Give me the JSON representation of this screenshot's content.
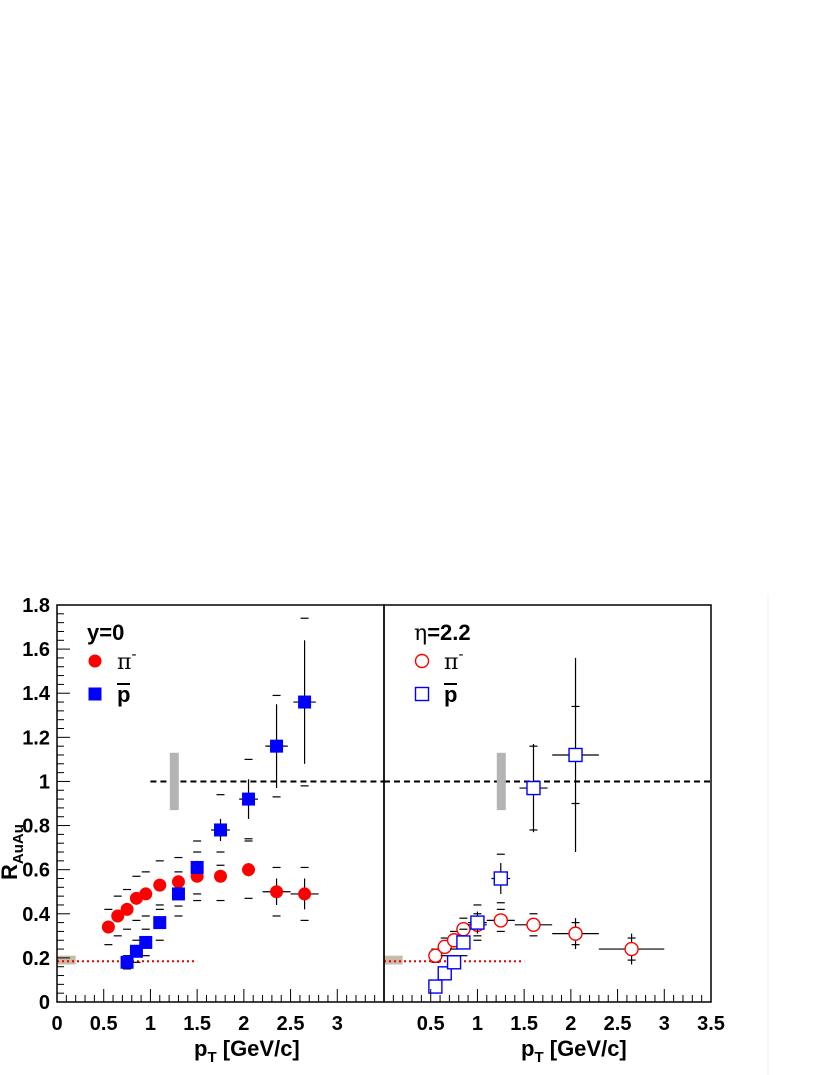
{
  "chart_data": [
    {
      "type": "scatter",
      "panel": "left",
      "title": "",
      "xlabel": "p",
      "xlabel_sub": "T",
      "xlabel_unit": " [GeV/c]",
      "ylabel": "R",
      "ylabel_sub": "AuAu",
      "xlim": [
        0,
        3.5
      ],
      "ylim": [
        0,
        1.8
      ],
      "x_ticks": [
        0,
        0.5,
        1,
        1.5,
        2,
        2.5,
        3
      ],
      "x_tick_labels": [
        "0",
        "0.5",
        "1",
        "1.5",
        "2",
        "2.5",
        "3"
      ],
      "y_ticks": [
        0,
        0.2,
        0.4,
        0.6,
        0.8,
        1.0,
        1.2,
        1.4,
        1.6,
        1.8
      ],
      "y_tick_labels": [
        "0",
        "0.2",
        "0.4",
        "0.6",
        "0.8",
        "1",
        "1.2",
        "1.4",
        "1.6",
        "1.8"
      ],
      "grid": false,
      "legend_position": "top-left",
      "legend_title": "y=0",
      "reference_line": {
        "y": 1.0,
        "x_from": 1.0,
        "x_to": 3.5,
        "style": "dashed"
      },
      "reference_band": {
        "x": 1.25,
        "y_low": 0.87,
        "y_high": 1.13,
        "color": "#b4b4b4"
      },
      "normalization_box": {
        "x_low": 0.0,
        "x_high": 0.2,
        "y_low": 0.17,
        "y_high": 0.21,
        "color": "#c8bca8"
      },
      "ncoll_line": {
        "y": 0.185,
        "x_from": 0.0,
        "x_to": 1.5,
        "color": "#e00000",
        "style": "dotted"
      },
      "series": [
        {
          "name": "π",
          "name_sup": "-",
          "marker": "filled-circle",
          "color": "#ff0000",
          "x": [
            0.55,
            0.65,
            0.75,
            0.85,
            0.95,
            1.1,
            1.3,
            1.5,
            1.75,
            2.05,
            2.35,
            2.65
          ],
          "y": [
            0.34,
            0.39,
            0.42,
            0.47,
            0.49,
            0.53,
            0.545,
            0.57,
            0.57,
            0.6,
            0.5,
            0.49
          ],
          "xerr": [
            0,
            0,
            0,
            0,
            0,
            0,
            0,
            0,
            0,
            0,
            0.15,
            0.15
          ],
          "yerr": [
            0.01,
            0.01,
            0.01,
            0.01,
            0.01,
            0.01,
            0.01,
            0.015,
            0.02,
            0.03,
            0.06,
            0.07
          ],
          "sys": [
            0.08,
            0.09,
            0.09,
            0.1,
            0.1,
            0.11,
            0.11,
            0.11,
            0.11,
            0.13,
            0.11,
            0.12
          ]
        },
        {
          "name": "p",
          "name_bar": true,
          "marker": "filled-square",
          "color": "#0000ff",
          "x": [
            0.75,
            0.85,
            0.95,
            1.1,
            1.3,
            1.5,
            1.75,
            2.05,
            2.35,
            2.65
          ],
          "y": [
            0.18,
            0.23,
            0.27,
            0.36,
            0.49,
            0.61,
            0.78,
            0.92,
            1.16,
            1.36
          ],
          "xerr": [
            0,
            0,
            0,
            0,
            0,
            0,
            0.1,
            0.1,
            0.12,
            0.12
          ],
          "yerr": [
            0.01,
            0.01,
            0.01,
            0.02,
            0.02,
            0.03,
            0.05,
            0.09,
            0.19,
            0.28
          ],
          "sys": [
            0.03,
            0.05,
            0.06,
            0.08,
            0.1,
            0.12,
            0.16,
            0.18,
            0.23,
            0.38
          ]
        }
      ]
    },
    {
      "type": "scatter",
      "panel": "right",
      "title": "",
      "xlabel": "p",
      "xlabel_sub": "T",
      "xlabel_unit": " [GeV/c]",
      "xlim": [
        0,
        3.5
      ],
      "ylim": [
        0,
        1.8
      ],
      "x_ticks": [
        0.5,
        1,
        1.5,
        2,
        2.5,
        3,
        3.5
      ],
      "x_tick_labels": [
        "0.5",
        "1",
        "1.5",
        "2",
        "2.5",
        "3",
        "3.5"
      ],
      "y_ticks": [
        0,
        0.2,
        0.4,
        0.6,
        0.8,
        1.0,
        1.2,
        1.4,
        1.6,
        1.8
      ],
      "grid": false,
      "legend_position": "top-left",
      "legend_title_symbol": "η",
      "legend_title": "=2.2",
      "reference_line": {
        "y": 1.0,
        "x_from": 0.0,
        "x_to": 3.5,
        "style": "dashed"
      },
      "reference_band": {
        "x": 1.25,
        "y_low": 0.87,
        "y_high": 1.13,
        "color": "#b4b4b4"
      },
      "normalization_box": {
        "x_low": 0.0,
        "x_high": 0.2,
        "y_low": 0.17,
        "y_high": 0.21,
        "color": "#c8bca8"
      },
      "ncoll_line": {
        "y": 0.185,
        "x_from": 0.0,
        "x_to": 1.5,
        "color": "#e00000",
        "style": "dotted"
      },
      "series": [
        {
          "name": "π",
          "name_sup": "-",
          "marker": "open-circle",
          "color": "#ff0000",
          "x": [
            0.55,
            0.65,
            0.75,
            0.85,
            1.0,
            1.25,
            1.6,
            2.05,
            2.65
          ],
          "y": [
            0.21,
            0.25,
            0.28,
            0.33,
            0.35,
            0.37,
            0.35,
            0.31,
            0.24
          ],
          "xerr": [
            0,
            0,
            0,
            0,
            0.1,
            0.15,
            0.2,
            0.25,
            0.35
          ],
          "yerr": [
            0.01,
            0.01,
            0.01,
            0.01,
            0.02,
            0.02,
            0.03,
            0.07,
            0.07
          ],
          "sys": [
            0.03,
            0.04,
            0.04,
            0.05,
            0.05,
            0.05,
            0.05,
            0.05,
            0.05
          ]
        },
        {
          "name": "p",
          "name_bar": true,
          "marker": "open-square",
          "color": "#0000ff",
          "x": [
            0.55,
            0.65,
            0.75,
            0.85,
            1.0,
            1.25,
            1.6,
            2.05
          ],
          "y": [
            0.07,
            0.13,
            0.18,
            0.27,
            0.36,
            0.56,
            0.97,
            1.12
          ],
          "xerr": [
            0,
            0,
            0,
            0,
            0.1,
            0.1,
            0.15,
            0.25
          ],
          "yerr": [
            0.01,
            0.01,
            0.02,
            0.03,
            0.05,
            0.07,
            0.2,
            0.44
          ],
          "sys": [
            0.01,
            0.02,
            0.03,
            0.06,
            0.08,
            0.11,
            0.19,
            0.22
          ]
        }
      ]
    }
  ]
}
